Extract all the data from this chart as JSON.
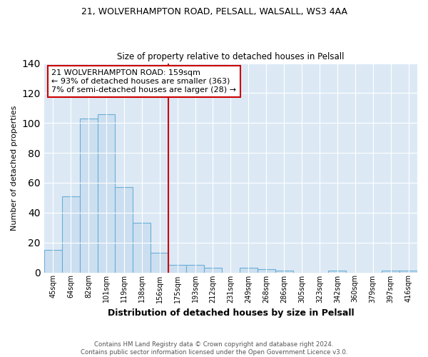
{
  "title1": "21, WOLVERHAMPTON ROAD, PELSALL, WALSALL, WS3 4AA",
  "title2": "Size of property relative to detached houses in Pelsall",
  "xlabel": "Distribution of detached houses by size in Pelsall",
  "ylabel": "Number of detached properties",
  "categories": [
    "45sqm",
    "64sqm",
    "82sqm",
    "101sqm",
    "119sqm",
    "138sqm",
    "156sqm",
    "175sqm",
    "193sqm",
    "212sqm",
    "231sqm",
    "249sqm",
    "268sqm",
    "286sqm",
    "305sqm",
    "323sqm",
    "342sqm",
    "360sqm",
    "379sqm",
    "397sqm",
    "416sqm"
  ],
  "values": [
    15,
    51,
    103,
    106,
    57,
    33,
    13,
    5,
    5,
    3,
    0,
    3,
    2,
    1,
    0,
    0,
    1,
    0,
    0,
    1,
    1
  ],
  "bar_color": "#ccdff0",
  "bar_edge_color": "#6aaed6",
  "vline_x_index": 6,
  "vline_color": "#cc0000",
  "annotation_text": "21 WOLVERHAMPTON ROAD: 159sqm\n← 93% of detached houses are smaller (363)\n7% of semi-detached houses are larger (28) →",
  "annotation_box_color": "#ffffff",
  "annotation_box_edge": "#cc0000",
  "ylim": [
    0,
    140
  ],
  "yticks": [
    0,
    20,
    40,
    60,
    80,
    100,
    120,
    140
  ],
  "footer": "Contains HM Land Registry data © Crown copyright and database right 2024.\nContains public sector information licensed under the Open Government Licence v3.0.",
  "fig_bg_color": "#ffffff",
  "plot_bg_color": "#dce9f5"
}
